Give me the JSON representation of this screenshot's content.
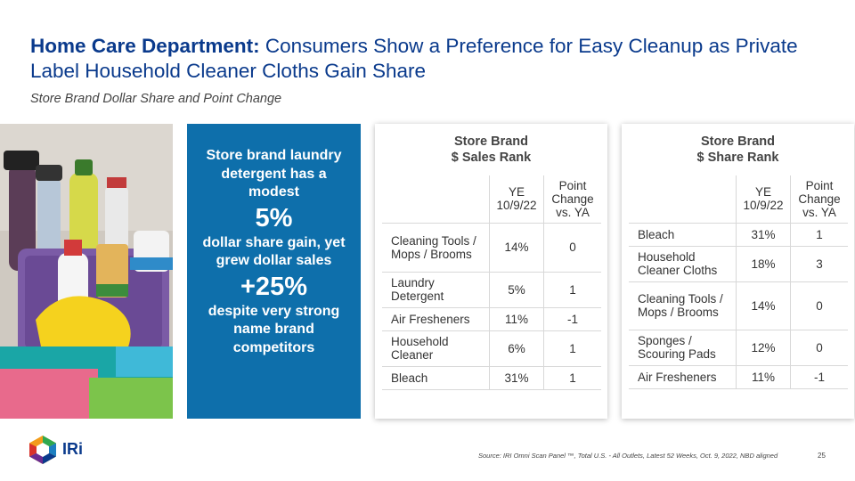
{
  "header": {
    "title_bold": "Home Care Department:",
    "title_rest": " Consumers Show a Preference for Easy Cleanup as Private Label Household Cleaner Cloths Gain Share",
    "subtitle": "Store Brand Dollar Share and Point Change"
  },
  "callout": {
    "line1": "Store brand laundry detergent  has a modest",
    "big1": "5%",
    "line2": "dollar share gain, yet grew dollar sales",
    "big2": "+25%",
    "line3": "despite very strong name brand competitors"
  },
  "sales_rank": {
    "title_line1": "Store Brand",
    "title_line2": "$ Sales Rank",
    "col1_line1": "YE",
    "col1_line2": "10/9/22",
    "col2_line1": "Point",
    "col2_line2": "Change",
    "col2_line3": "vs. YA",
    "rows": [
      {
        "category": "Cleaning Tools / Mops / Brooms",
        "share": "14%",
        "change": "0"
      },
      {
        "category": "Laundry Detergent",
        "share": "5%",
        "change": "1"
      },
      {
        "category": "Air Fresheners",
        "share": "11%",
        "change": "-1"
      },
      {
        "category": "Household Cleaner",
        "share": "6%",
        "change": "1"
      },
      {
        "category": "Bleach",
        "share": "31%",
        "change": "1"
      }
    ]
  },
  "share_rank": {
    "title_line1": "Store Brand",
    "title_line2": "$ Share Rank",
    "col1_line1": "YE",
    "col1_line2": "10/9/22",
    "col2_line1": "Point",
    "col2_line2": "Change",
    "col2_line3": "vs. YA",
    "rows": [
      {
        "category": "Bleach",
        "share": "31%",
        "change": "1"
      },
      {
        "category": "Household Cleaner Cloths",
        "share": "18%",
        "change": "3"
      },
      {
        "category": "Cleaning Tools / Mops / Brooms",
        "share": "14%",
        "change": "0"
      },
      {
        "category": "Sponges / Scouring Pads",
        "share": "12%",
        "change": "0"
      },
      {
        "category": "Air Fresheners",
        "share": "11%",
        "change": "-1"
      }
    ]
  },
  "footer": {
    "logo_text": "IRi",
    "source": "Source: IRI  Omni Scan Panel ™, Total U.S. - All Outlets, Latest 52 Weeks, Oct. 9, 2022, NBD aligned",
    "page_number": "25"
  },
  "colors": {
    "title_blue": "#0a3a8c",
    "callout_blue": "#0e6fab"
  }
}
